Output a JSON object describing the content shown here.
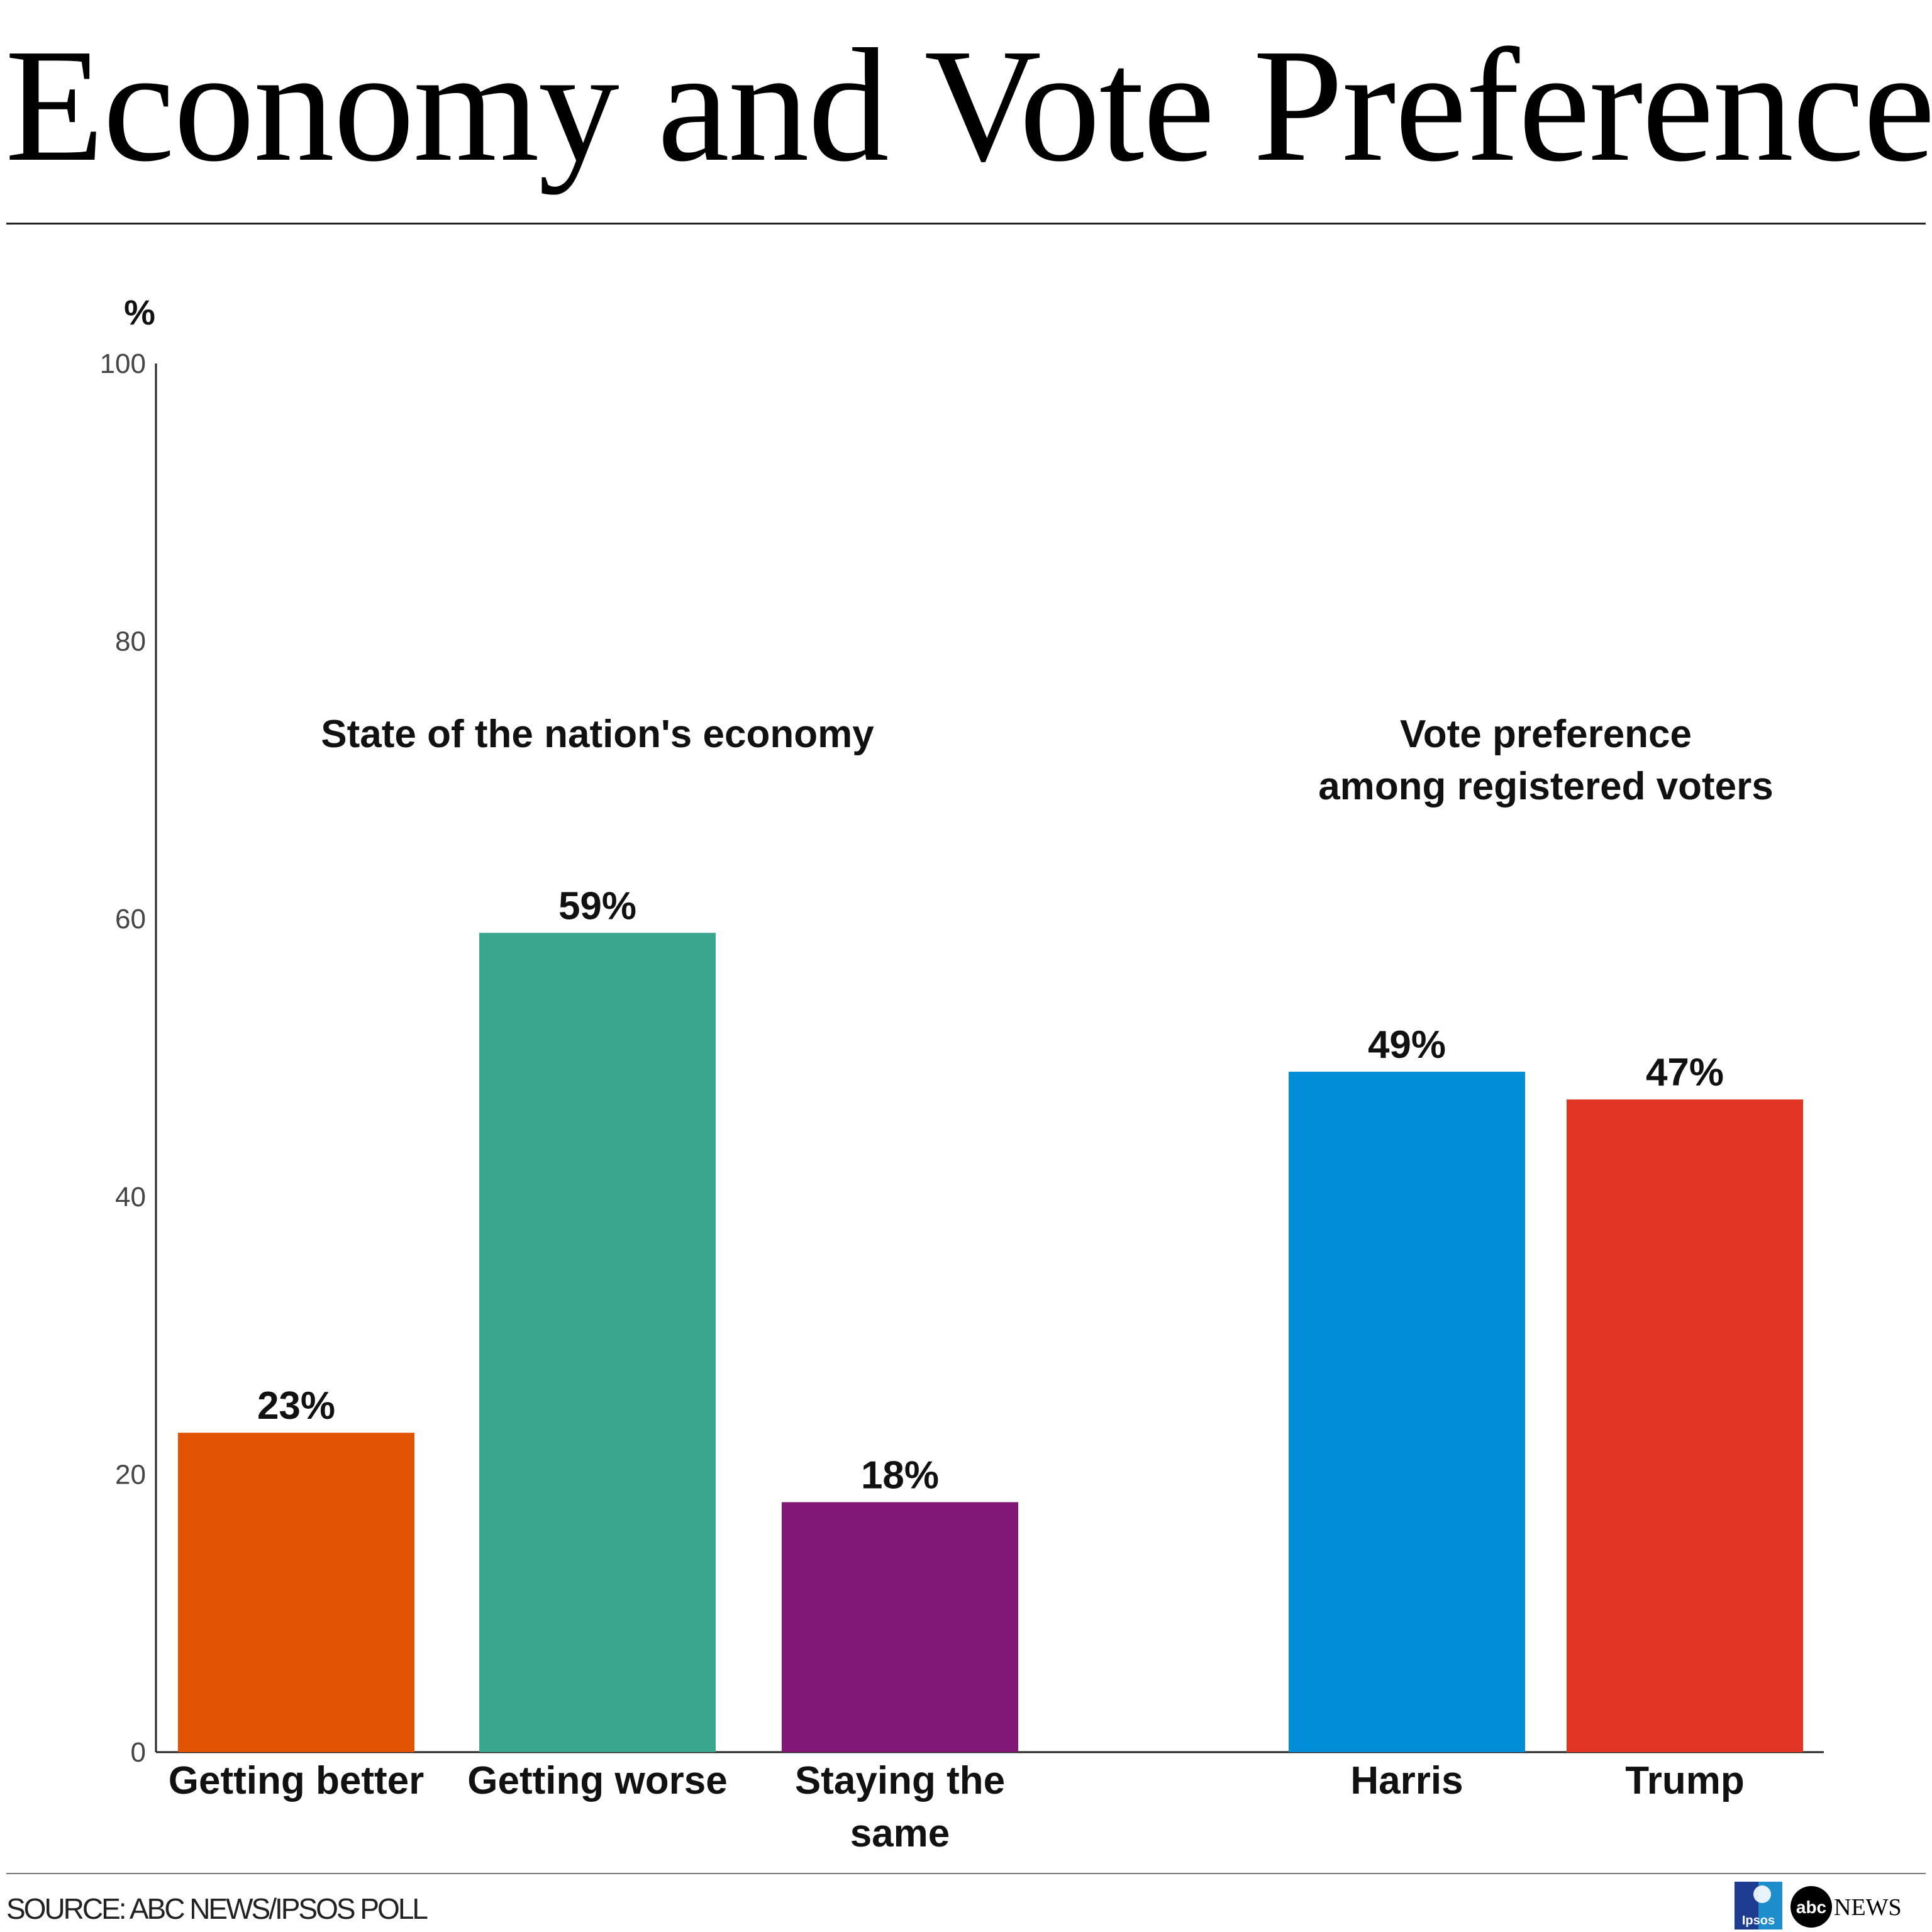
{
  "title": "Economy and Vote Preference",
  "source": "SOURCE: ABC NEWS/IPSOS POLL",
  "logos": {
    "ipsos": "Ipsos",
    "abc_news": "NEWS",
    "abc": "abc"
  },
  "chart_data": {
    "type": "bar",
    "y_unit_label": "%",
    "ylim": [
      0,
      100
    ],
    "y_ticks": [
      0,
      20,
      40,
      60,
      80,
      100
    ],
    "grid": false,
    "groups": [
      {
        "label_lines": [
          "State of the nation's economy"
        ],
        "bars": [
          {
            "category_lines": [
              "Getting better"
            ],
            "value": 23,
            "label": "23%",
            "color": "#E25304"
          },
          {
            "category_lines": [
              "Getting worse"
            ],
            "value": 59,
            "label": "59%",
            "color": "#3BA68E"
          },
          {
            "category_lines": [
              "Staying the",
              "same"
            ],
            "value": 18,
            "label": "18%",
            "color": "#811878"
          }
        ]
      },
      {
        "label_lines": [
          "Vote preference",
          "among registered voters"
        ],
        "bars": [
          {
            "category_lines": [
              "Harris"
            ],
            "value": 49,
            "label": "49%",
            "color": "#028DD8"
          },
          {
            "category_lines": [
              "Trump"
            ],
            "value": 47,
            "label": "47%",
            "color": "#E23523"
          }
        ]
      }
    ]
  }
}
